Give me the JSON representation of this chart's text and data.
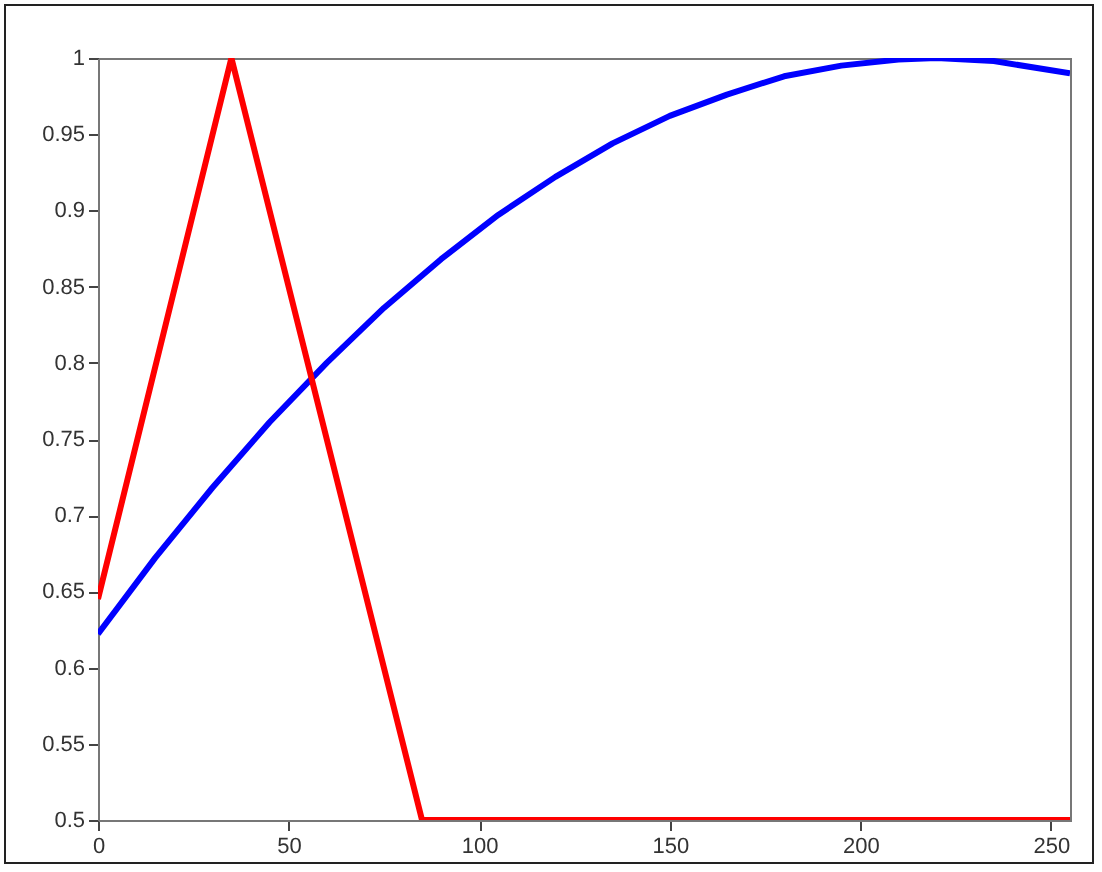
{
  "chart_data": {
    "type": "line",
    "xlim": [
      0,
      255
    ],
    "ylim": [
      0.5,
      1
    ],
    "xticks": [
      0,
      50,
      100,
      150,
      200,
      250
    ],
    "yticks": [
      0.5,
      0.55,
      0.6,
      0.65,
      0.7,
      0.75,
      0.8,
      0.85,
      0.9,
      0.95,
      1
    ],
    "grid": false,
    "line_style": "solid",
    "series": [
      {
        "color": "#0000ff",
        "x": [
          0,
          15,
          30,
          45,
          60,
          75,
          90,
          105,
          120,
          135,
          150,
          165,
          180,
          195,
          210,
          220,
          235,
          255
        ],
        "values": [
          0.622,
          0.672,
          0.718,
          0.761,
          0.8,
          0.836,
          0.868,
          0.897,
          0.922,
          0.944,
          0.962,
          0.976,
          0.988,
          0.995,
          0.999,
          1.0,
          0.998,
          0.99
        ]
      },
      {
        "color": "#ff0000",
        "x": [
          0,
          35,
          85,
          255
        ],
        "values": [
          0.645,
          1,
          0.5,
          0.5
        ]
      }
    ]
  }
}
